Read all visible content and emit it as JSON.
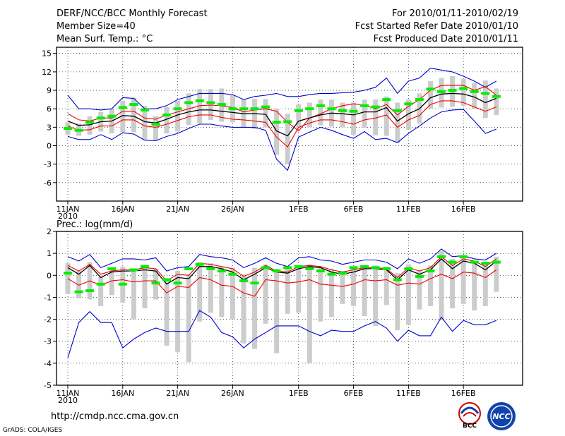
{
  "header": {
    "title": "DERF/NCC/BCC Monthly Forecast",
    "member_size": "Member Size=40",
    "variable": "Mean Surf. Temp.: °C",
    "period": "For 2010/01/11-2010/02/19",
    "started": "Fcst Started Refer Date 2010/01/10",
    "produced": "Fcst Produced Date 2010/01/11"
  },
  "footer": {
    "url": "http://cmdp.ncc.cma.gov.cn",
    "credit": "GrADS: COLA/IGES",
    "logo_bcc": "BCC",
    "logo_ncc": "NCC"
  },
  "colors": {
    "box": "#cccccc",
    "median": "#00ee00",
    "mean": "#000000",
    "spread": "#ee0000",
    "extreme": "#0000cc",
    "grid": "#000000"
  },
  "chart_data": [
    {
      "type": "line",
      "title": "Mean Surf. Temp.: °C",
      "ylim": [
        -9,
        16
      ],
      "yticks": [
        -6,
        -3,
        0,
        3,
        6,
        9,
        12,
        15
      ],
      "xlabels": [
        "11JAN",
        "16JAN",
        "21JAN",
        "26JAN",
        "1FEB",
        "6FEB",
        "11FEB",
        "16FEB"
      ],
      "xlabels_days": [
        1,
        6,
        11,
        16,
        22,
        27,
        32,
        37
      ],
      "year_label": "2010",
      "grid": true,
      "days": 40,
      "series": [
        {
          "name": "max",
          "values": [
            8.2,
            6.0,
            6.0,
            5.8,
            6.0,
            7.8,
            7.7,
            6.0,
            6.0,
            6.5,
            7.5,
            8.0,
            8.5,
            8.5,
            8.5,
            8.3,
            7.5,
            8.0,
            8.2,
            8.5,
            8.0,
            8.0,
            8.3,
            8.5,
            8.5,
            8.6,
            8.7,
            9.0,
            9.5,
            11.0,
            8.5,
            10.5,
            11.0,
            12.6,
            12.3,
            12.0,
            11.3,
            10.5,
            9.5,
            10.5
          ]
        },
        {
          "name": "upper",
          "values": [
            5.2,
            4.2,
            4.0,
            4.5,
            4.5,
            5.6,
            5.6,
            4.5,
            4.3,
            5.0,
            5.5,
            6.0,
            6.5,
            6.6,
            6.5,
            6.2,
            5.5,
            5.8,
            6.0,
            5.6,
            3.8,
            2.4,
            4.5,
            5.2,
            6.0,
            6.5,
            6.8,
            6.6,
            6.0,
            6.7,
            5.0,
            6.4,
            7.5,
            9.0,
            9.8,
            9.8,
            9.8,
            9.0,
            9.6,
            8.2
          ]
        },
        {
          "name": "mean",
          "values": [
            4.0,
            3.3,
            3.4,
            3.9,
            4.0,
            4.9,
            4.8,
            3.9,
            3.7,
            4.3,
            5.0,
            5.5,
            5.8,
            5.8,
            5.6,
            5.4,
            5.2,
            5.2,
            5.1,
            2.4,
            1.6,
            4.0,
            4.5,
            5.0,
            5.3,
            5.2,
            5.0,
            5.5,
            5.5,
            6.2,
            4.0,
            5.2,
            6.0,
            7.8,
            8.4,
            8.5,
            8.4,
            7.9,
            7.0,
            7.7
          ]
        },
        {
          "name": "lower",
          "values": [
            3.2,
            2.5,
            2.6,
            3.2,
            3.2,
            4.2,
            4.2,
            3.2,
            3.0,
            3.5,
            4.1,
            4.7,
            5.0,
            5.0,
            4.6,
            4.3,
            4.2,
            4.0,
            3.8,
            1.4,
            -0.2,
            3.0,
            3.7,
            4.2,
            4.2,
            3.9,
            3.5,
            4.2,
            4.5,
            5.0,
            3.0,
            4.2,
            4.9,
            6.7,
            7.3,
            7.3,
            7.0,
            6.3,
            5.6,
            6.3
          ]
        },
        {
          "name": "min",
          "values": [
            1.5,
            1.0,
            1.0,
            1.8,
            1.0,
            2.1,
            1.9,
            0.9,
            0.8,
            1.5,
            2.0,
            2.8,
            3.5,
            3.5,
            3.2,
            3.0,
            3.0,
            3.0,
            2.5,
            -2.2,
            -4.0,
            1.4,
            2.2,
            3.0,
            2.5,
            1.8,
            1.2,
            2.3,
            1.0,
            1.2,
            0.5,
            2.0,
            3.2,
            4.5,
            5.5,
            5.8,
            5.9,
            4.0,
            2.0,
            2.7
          ]
        },
        {
          "name": "median",
          "values": [
            2.8,
            2.5,
            3.8,
            4.5,
            4.8,
            6.2,
            6.7,
            5.8,
            3.5,
            5.0,
            6.0,
            7.0,
            7.3,
            7.0,
            6.7,
            6.0,
            6.0,
            6.0,
            6.3,
            3.8,
            3.9,
            5.7,
            6.0,
            6.5,
            6.0,
            5.7,
            5.6,
            6.5,
            6.3,
            7.5,
            5.7,
            6.8,
            7.5,
            9.2,
            8.8,
            9.0,
            9.3,
            8.8,
            8.5,
            8.0
          ]
        },
        {
          "name": "box_high",
          "values": [
            3.8,
            3.6,
            4.8,
            5.5,
            6.0,
            7.3,
            7.8,
            6.5,
            4.8,
            6.3,
            7.3,
            8.5,
            9.2,
            9.2,
            9.3,
            8.2,
            7.5,
            7.6,
            7.6,
            6.0,
            5.2,
            6.7,
            7.0,
            7.5,
            7.5,
            7.0,
            7.0,
            7.5,
            7.5,
            8.0,
            7.0,
            7.5,
            8.5,
            10.5,
            11.0,
            11.3,
            10.9,
            10.2,
            10.6,
            9.3
          ]
        },
        {
          "name": "box_low",
          "values": [
            1.8,
            1.6,
            1.8,
            2.3,
            2.0,
            2.2,
            2.2,
            1.0,
            0.8,
            2.0,
            2.3,
            3.4,
            3.6,
            4.2,
            3.9,
            3.8,
            3.0,
            2.7,
            3.0,
            -1.5,
            -3.0,
            2.8,
            3.0,
            3.3,
            3.1,
            3.0,
            1.8,
            2.9,
            1.7,
            1.6,
            0.5,
            2.6,
            3.6,
            6.0,
            6.2,
            6.3,
            6.5,
            6.0,
            4.5,
            5.0
          ]
        }
      ]
    },
    {
      "type": "line",
      "title": "Prec.: log(mm/d)",
      "ylim": [
        -5,
        2
      ],
      "yticks": [
        -5,
        -4,
        -3,
        -2,
        -1,
        0,
        1,
        2
      ],
      "xlabels": [
        "11JAN",
        "16JAN",
        "21JAN",
        "26JAN",
        "1FEB",
        "6FEB",
        "11FEB",
        "16FEB"
      ],
      "xlabels_days": [
        1,
        6,
        11,
        16,
        22,
        27,
        32,
        37
      ],
      "year_label": "2010",
      "grid": true,
      "days": 40,
      "series": [
        {
          "name": "max",
          "values": [
            0.85,
            0.65,
            0.95,
            0.35,
            0.55,
            0.75,
            0.75,
            0.7,
            0.8,
            0.2,
            0.35,
            0.4,
            0.95,
            0.85,
            0.8,
            0.7,
            0.35,
            0.55,
            0.8,
            0.55,
            0.4,
            0.8,
            0.85,
            0.7,
            0.65,
            0.5,
            0.6,
            0.7,
            0.7,
            0.6,
            0.3,
            0.75,
            0.55,
            0.75,
            1.2,
            0.85,
            0.9,
            0.75,
            0.7,
            1.0
          ]
        },
        {
          "name": "upper",
          "values": [
            0.45,
            0.2,
            0.5,
            0.05,
            0.2,
            0.25,
            0.25,
            0.35,
            0.3,
            -0.25,
            0.05,
            0.0,
            0.55,
            0.5,
            0.4,
            0.3,
            -0.05,
            0.15,
            0.45,
            0.2,
            0.15,
            0.4,
            0.45,
            0.4,
            0.25,
            0.15,
            0.25,
            0.35,
            0.35,
            0.3,
            -0.1,
            0.35,
            0.2,
            0.35,
            0.85,
            0.45,
            0.75,
            0.65,
            0.4,
            0.75
          ]
        },
        {
          "name": "mean",
          "values": [
            0.35,
            0.05,
            0.45,
            -0.1,
            0.15,
            0.2,
            0.2,
            0.25,
            0.2,
            -0.4,
            -0.1,
            -0.15,
            0.4,
            0.4,
            0.3,
            0.15,
            -0.2,
            0.05,
            0.35,
            0.15,
            0.1,
            0.3,
            0.4,
            0.35,
            0.15,
            0.05,
            0.15,
            0.3,
            0.3,
            0.25,
            -0.2,
            0.25,
            0.05,
            0.25,
            0.75,
            0.3,
            0.65,
            0.55,
            0.25,
            0.65
          ]
        },
        {
          "name": "lower",
          "values": [
            -0.15,
            -0.45,
            -0.25,
            -0.45,
            -0.25,
            -0.2,
            -0.3,
            -0.25,
            -0.25,
            -0.8,
            -0.5,
            -0.55,
            -0.1,
            -0.2,
            -0.45,
            -0.5,
            -0.8,
            -0.95,
            -0.2,
            -0.25,
            -0.35,
            -0.3,
            -0.2,
            -0.4,
            -0.45,
            -0.5,
            -0.4,
            -0.2,
            -0.25,
            -0.2,
            -0.45,
            -0.35,
            -0.4,
            -0.15,
            0.05,
            -0.15,
            0.15,
            0.1,
            -0.1,
            0.25
          ]
        },
        {
          "name": "min",
          "values": [
            -3.75,
            -2.15,
            -1.65,
            -2.15,
            -2.15,
            -3.3,
            -2.9,
            -2.6,
            -2.4,
            -2.55,
            -2.55,
            -2.55,
            -1.6,
            -1.9,
            -2.6,
            -2.8,
            -3.3,
            -2.9,
            -2.6,
            -2.3,
            -2.3,
            -2.3,
            -2.55,
            -2.75,
            -2.5,
            -2.55,
            -2.55,
            -2.3,
            -2.1,
            -2.4,
            -3.0,
            -2.5,
            -2.75,
            -2.75,
            -1.9,
            -2.55,
            -2.05,
            -2.25,
            -2.25,
            -2.05
          ]
        },
        {
          "name": "median",
          "values": [
            0.1,
            -0.75,
            -0.7,
            -0.4,
            0.3,
            -0.4,
            0.25,
            0.4,
            -0.35,
            -0.2,
            -0.35,
            0.3,
            0.5,
            0.3,
            0.2,
            0.05,
            -0.25,
            -0.35,
            0.35,
            0.2,
            0.35,
            0.4,
            0.3,
            0.2,
            0.05,
            0.1,
            0.35,
            0.4,
            0.35,
            0.3,
            -0.2,
            0.3,
            -0.05,
            0.2,
            0.85,
            0.6,
            0.85,
            0.6,
            0.55,
            0.6
          ]
        },
        {
          "name": "box_high",
          "values": [
            0.55,
            0.2,
            0.6,
            -0.05,
            0.25,
            0.4,
            0.3,
            0.35,
            0.3,
            -0.2,
            0.2,
            0.05,
            0.6,
            0.55,
            0.4,
            0.35,
            0.05,
            0.35,
            0.5,
            0.3,
            0.3,
            0.45,
            0.5,
            0.4,
            0.3,
            0.2,
            0.35,
            0.45,
            0.45,
            0.4,
            0.1,
            0.5,
            0.25,
            0.45,
            1.1,
            0.75,
            0.85,
            0.6,
            0.6,
            0.85
          ]
        },
        {
          "name": "box_low",
          "values": [
            -0.85,
            -1.05,
            -1.1,
            -1.4,
            -0.9,
            -1.25,
            -2.0,
            -1.5,
            -1.1,
            -3.2,
            -3.5,
            -3.95,
            -2.1,
            -1.7,
            -1.9,
            -2.0,
            -3.1,
            -3.35,
            -2.2,
            -3.55,
            -1.75,
            -1.7,
            -4.0,
            -2.1,
            -1.9,
            -1.3,
            -1.4,
            -1.85,
            -2.3,
            -1.35,
            -2.5,
            -2.25,
            -1.55,
            -1.4,
            -2.05,
            -1.5,
            -1.3,
            -1.6,
            -1.4,
            -0.75
          ]
        }
      ]
    }
  ]
}
